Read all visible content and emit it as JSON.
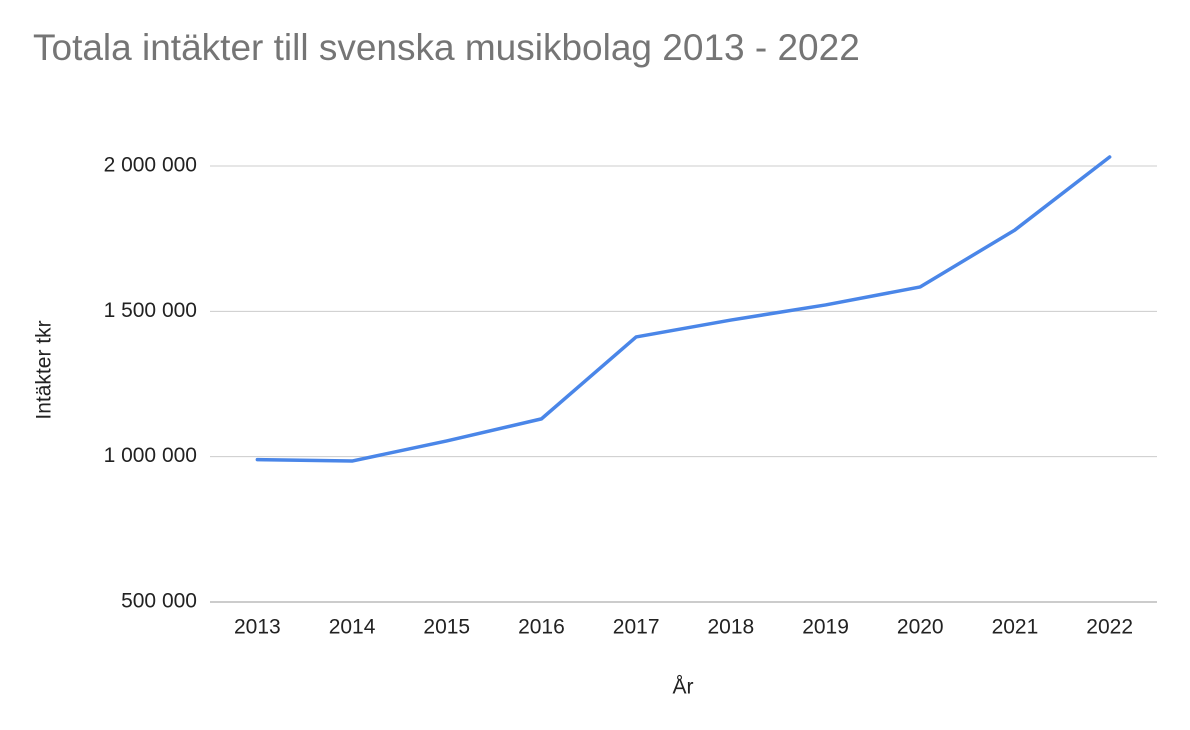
{
  "chart_data": {
    "type": "line",
    "title": "Totala intäkter till svenska musikbolag 2013 - 2022",
    "x_label": "År",
    "y_label": "Intäkter tkr",
    "categories": [
      "2013",
      "2014",
      "2015",
      "2016",
      "2017",
      "2018",
      "2019",
      "2020",
      "2021",
      "2022"
    ],
    "series": [
      {
        "name": "Intäkter tkr",
        "color": "#4a86e8",
        "values": [
          990000,
          985000,
          1054000,
          1130000,
          1412000,
          1470000,
          1522000,
          1584000,
          1780000,
          2031000
        ]
      }
    ],
    "ylim": [
      500000,
      2000000
    ],
    "yticks": [
      {
        "value": 500000,
        "label": "500 000"
      },
      {
        "value": 1000000,
        "label": "1 000 000"
      },
      {
        "value": 1500000,
        "label": "1 500 000"
      },
      {
        "value": 2000000,
        "label": "2 000 000"
      }
    ],
    "grid": true
  }
}
